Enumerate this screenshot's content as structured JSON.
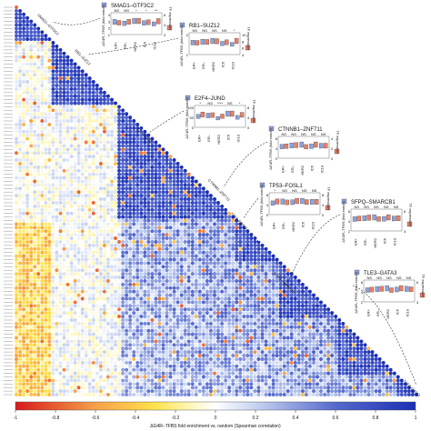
{
  "chart_data": {
    "type": "heatmap",
    "subtype": "lower-triangular correlation matrix with dot markers, annotated with inset box plots",
    "colorbar": {
      "label": "ΔG4R–TFBS fold enrichment vs. random (Spearman correlation)",
      "ticks": [
        "-1",
        "-0.8",
        "-0.6",
        "-0.4",
        "-0.2",
        "0",
        "0.2",
        "0.4",
        "0.6",
        "0.8",
        "1"
      ],
      "range": [
        -1,
        1
      ],
      "colors": [
        "#d7191c",
        "#f6a04a",
        "#ffe34d",
        "#fff8c8",
        "#ffffff",
        "#c6d2f0",
        "#5569cc",
        "#1c2fb5"
      ]
    },
    "diagonal_labels": [
      "SMAD1–GTF3C2",
      "RB1–SUZ12",
      "E2F4–JUND",
      "CTNNB1–ZNF711",
      "TP53–FOSL1",
      "SFPQ–SMARCB1",
      "TLE3–GATA3"
    ],
    "inset_common": {
      "left_axis": "ΔG4R–TFBS (fold enrich)",
      "right_axis": "TF expression",
      "groups": [
        "ER+",
        "ER–",
        "HER2",
        "IC6",
        "IC10"
      ]
    },
    "insets": [
      {
        "title": "SMAD1–GTF3C2",
        "left_axis": "ΔG4R–TFBS (fold enrich)",
        "right_axis": "TF expression",
        "left_ticks": [
          "4",
          "3",
          "2",
          "1"
        ],
        "right_ticks": [
          "6",
          "4",
          "2"
        ],
        "sig": [
          "NS",
          "NS",
          "*",
          "*",
          "**"
        ],
        "blue": [
          2.4,
          2.1,
          2.6,
          2.2,
          2.0
        ],
        "red": [
          4.2,
          4.6,
          4.9,
          4.4,
          4.8
        ]
      },
      {
        "title": "RB1–SUZ12",
        "left_axis": "ΔG4R–TFBS (fold enrich)",
        "right_axis": "TF expression",
        "left_ticks": [
          "2",
          "1"
        ],
        "right_ticks": [
          "10",
          "8",
          "6",
          "4"
        ],
        "sig": [
          "NS",
          "NS",
          "NS",
          "NS",
          "*"
        ],
        "blue": [
          1.3,
          1.4,
          1.5,
          1.2,
          1.1
        ],
        "red": [
          6.5,
          7.0,
          7.4,
          6.8,
          7.6
        ]
      },
      {
        "title": "E2F4–JUND",
        "left_axis": "ΔG4R–TFBS (fold enrich)",
        "right_axis": "TF expression",
        "left_ticks": [
          "100",
          "50",
          "0"
        ],
        "right_ticks": [
          "8",
          "4",
          "0"
        ],
        "sig": [
          "*",
          "NS",
          "****",
          "NS",
          "*"
        ],
        "blue": [
          55,
          60,
          45,
          70,
          50
        ],
        "red": [
          4.2,
          4.0,
          3.6,
          4.5,
          4.1
        ]
      },
      {
        "title": "CTNNB1–ZNF711",
        "left_axis": "ΔG4R–TFBS (fold enrich)",
        "right_axis": "TF expression",
        "left_ticks": [
          "8",
          "4",
          "0"
        ],
        "right_ticks": [
          "4",
          "2",
          "0"
        ],
        "sig": [
          "NS",
          "NS",
          "NS",
          "NS",
          "NS"
        ],
        "blue": [
          3.8,
          4.2,
          4.5,
          3.9,
          4.1
        ],
        "red": [
          2.1,
          2.3,
          2.0,
          2.4,
          2.2
        ]
      },
      {
        "title": "TP53–FOSL1",
        "left_axis": "ΔG4R–TFBS (fold enrich)",
        "right_axis": "TF expression",
        "left_ticks": [
          "8",
          "4",
          "0"
        ],
        "right_ticks": [
          "8",
          "4",
          "0"
        ],
        "sig": [
          "*",
          "NS",
          "NS",
          "NS",
          "NS"
        ],
        "blue": [
          3.5,
          4.0,
          3.8,
          4.2,
          3.9
        ],
        "red": [
          4.4,
          4.1,
          4.6,
          4.2,
          4.3
        ]
      },
      {
        "title": "SFPQ–SMARCB1",
        "left_axis": "ΔG4R–TFBS (fold enrich)",
        "right_axis": "TF expression",
        "left_ticks": [
          "6",
          "4",
          "2"
        ],
        "right_ticks": [
          "6",
          "4"
        ],
        "sig": [
          "NS",
          "NS",
          "NS",
          "NS",
          "NS"
        ],
        "blue": [
          3.8,
          4.1,
          4.4,
          3.9,
          4.0
        ],
        "red": [
          4.2,
          4.5,
          4.0,
          4.6,
          4.3
        ]
      },
      {
        "title": "TLE3–GATA3",
        "left_axis": "ΔG4R–TFBS (fold enrich)",
        "right_axis": "TF expression",
        "left_ticks": [
          "6",
          "4",
          "2"
        ],
        "right_ticks": [
          "6",
          "4"
        ],
        "sig": [
          "NS",
          "NS",
          "NS",
          "NS",
          "NS"
        ],
        "blue": [
          3.6,
          3.9,
          4.2,
          3.8,
          4.0
        ],
        "red": [
          4.4,
          4.7,
          4.2,
          4.9,
          4.5
        ]
      }
    ],
    "grid": false,
    "legend": "colorbar bottom"
  }
}
